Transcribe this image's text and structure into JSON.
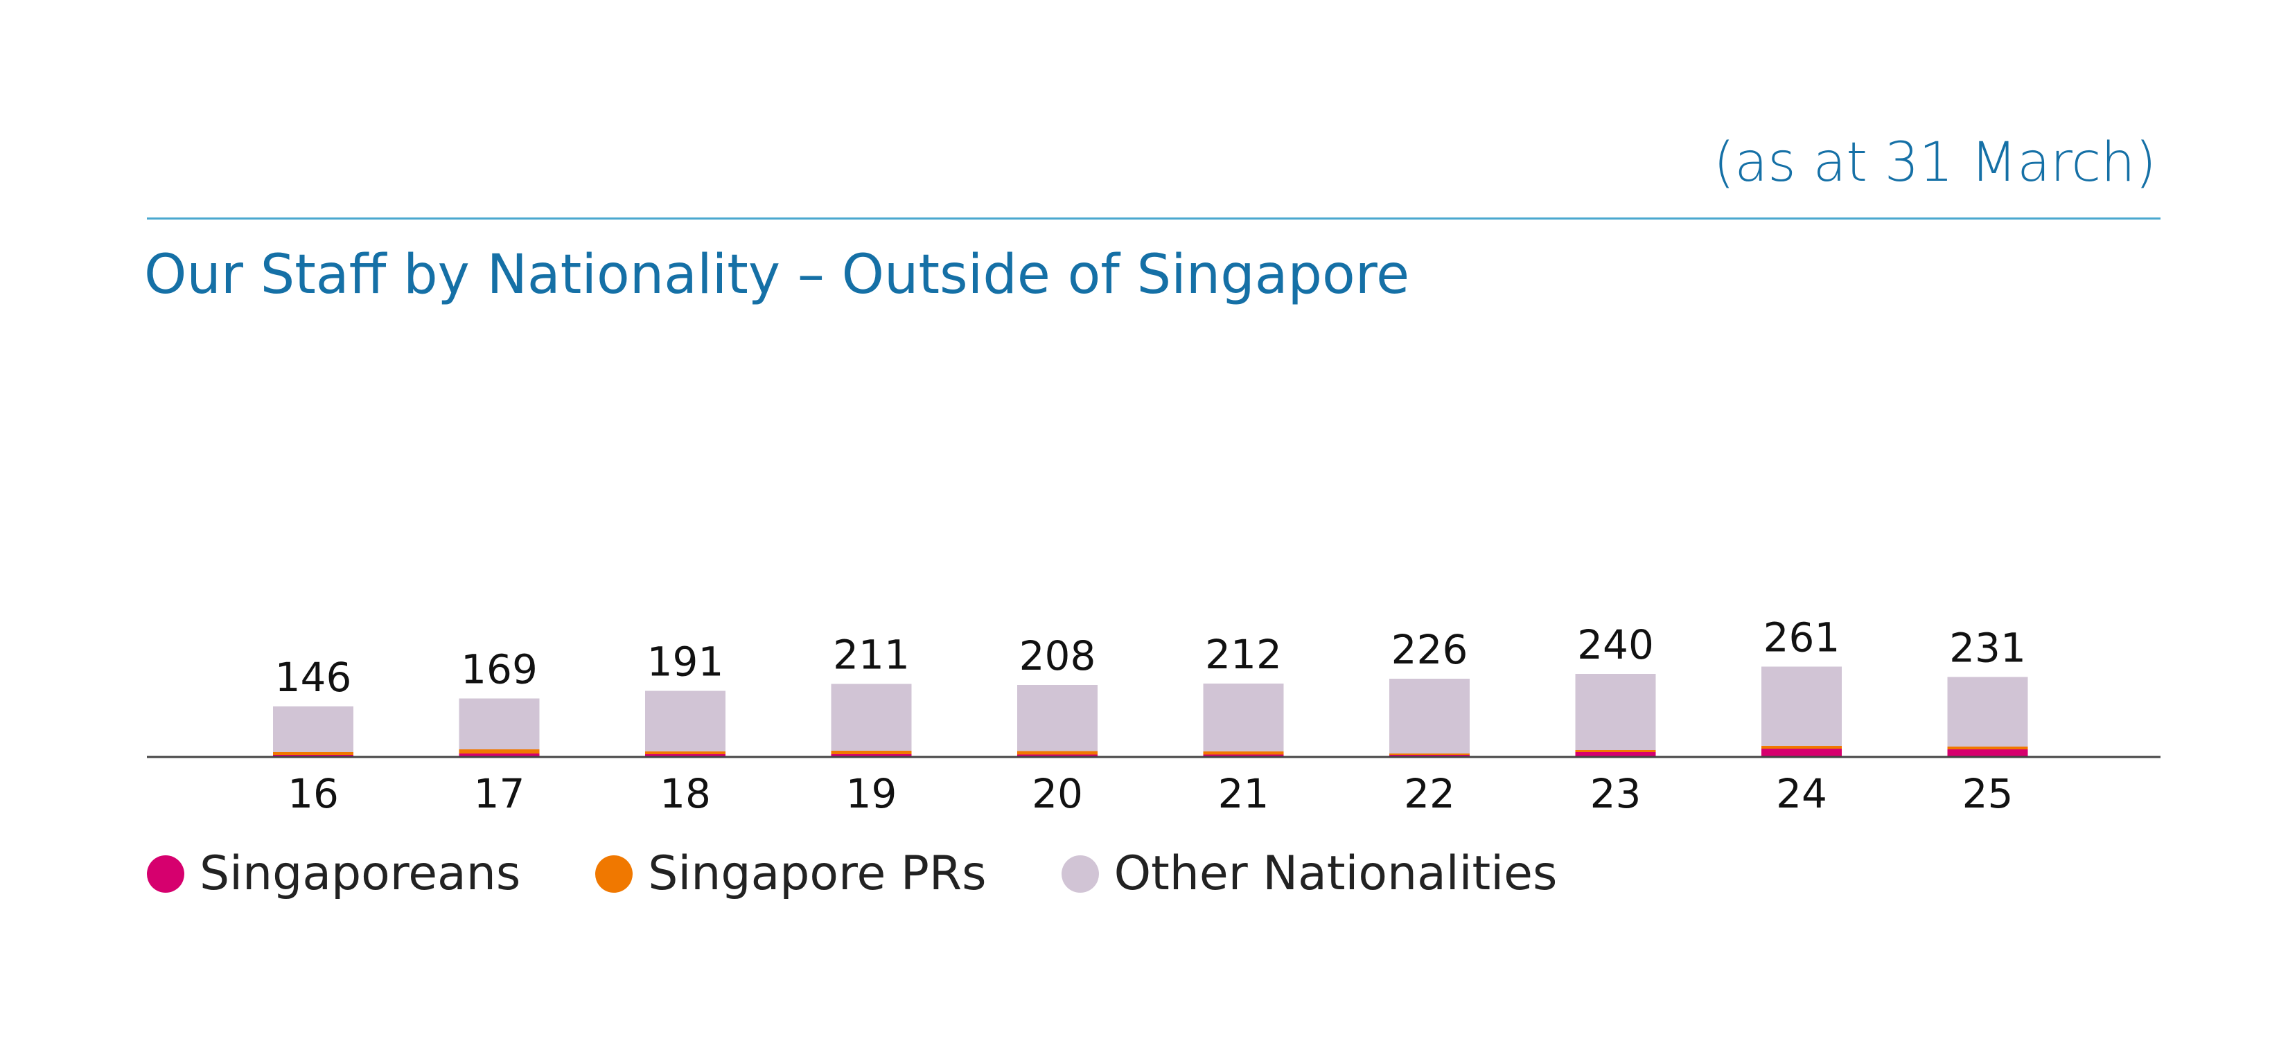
{
  "note": "(as at 31 March)",
  "title": "Our Staff by Nationality – Outside of Singapore",
  "colors": {
    "singaporeans": "#d6006e",
    "prs": "#f07800",
    "others": "#d1c4d5",
    "title": "#1570a6",
    "rule": "#4aa8cf",
    "axis": "#444444"
  },
  "chart_data": {
    "type": "bar",
    "stacked": true,
    "categories": [
      "16",
      "17",
      "18",
      "19",
      "20",
      "21",
      "22",
      "23",
      "24",
      "25"
    ],
    "totals": [
      146,
      169,
      191,
      211,
      208,
      212,
      226,
      240,
      261,
      231
    ],
    "series": [
      {
        "name": "Singaporeans",
        "values": [
          6,
          10,
          8,
          8,
          7,
          7,
          6,
          14,
          24,
          22
        ]
      },
      {
        "name": "Singapore PRs",
        "values": [
          8,
          12,
          8,
          10,
          10,
          9,
          4,
          6,
          8,
          8
        ]
      },
      {
        "name": "Other Nationalities",
        "values": [
          132,
          147,
          175,
          193,
          191,
          196,
          216,
          220,
          229,
          201
        ]
      }
    ],
    "legend_position": "bottom-left",
    "grid": false
  },
  "legend": [
    {
      "label": "Singaporeans",
      "color": "#d6006e"
    },
    {
      "label": "Singapore PRs",
      "color": "#f07800"
    },
    {
      "label": "Other Nationalities",
      "color": "#d1c4d5"
    }
  ]
}
